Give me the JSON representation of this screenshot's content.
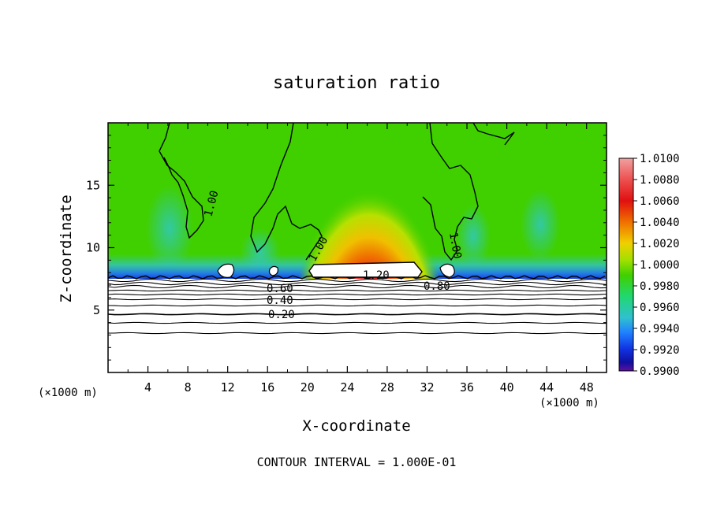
{
  "chart_data": {
    "type": "heatmap",
    "title": "saturation ratio",
    "xlabel": "X-coordinate",
    "ylabel": "Z-coordinate",
    "x_unit_left": "(×1000 m)",
    "x_unit_right": "(×1000 m)",
    "footer": "CONTOUR INTERVAL = 1.000E-01",
    "xlim": [
      0,
      50
    ],
    "ylim": [
      0,
      20
    ],
    "x_ticks": [
      "4",
      "8",
      "12",
      "16",
      "20",
      "24",
      "28",
      "32",
      "36",
      "40",
      "44",
      "48"
    ],
    "y_ticks": [
      "5",
      "10",
      "15"
    ],
    "colorbar": {
      "range": [
        0.99,
        1.01
      ],
      "labels": [
        "1.0100",
        "1.0080",
        "1.0060",
        "1.0040",
        "1.0020",
        "1.0000",
        "0.9980",
        "0.9960",
        "0.9940",
        "0.9920",
        "0.9900"
      ],
      "colors": [
        "#f0a0a0",
        "#ee4040",
        "#e01010",
        "#f07000",
        "#f0c000",
        "#d8e000",
        "#40d000",
        "#20d860",
        "#30c8c0",
        "#2080ff",
        "#1030e0",
        "#1010a0",
        "#5010a0"
      ]
    },
    "contour_labels": [
      "1.00",
      "1.00",
      "1.00",
      "1.20",
      "0.80",
      "0.60",
      "0.40",
      "0.20"
    ],
    "contour_levels": [
      0.2,
      0.4,
      0.6,
      0.8,
      1.0,
      1.2
    ]
  }
}
